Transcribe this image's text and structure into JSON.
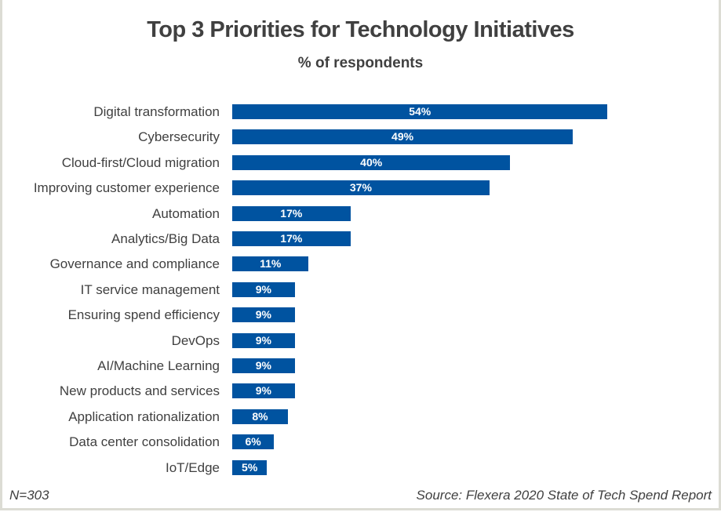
{
  "chart_data": {
    "type": "bar",
    "orientation": "horizontal",
    "title": "Top 3 Priorities for Technology Initiatives",
    "subtitle": "% of respondents",
    "categories": [
      "Digital transformation",
      "Cybersecurity",
      "Cloud-first/Cloud migration",
      "Improving customer experience",
      "Automation",
      "Analytics/Big Data",
      "Governance and compliance",
      "IT service management",
      "Ensuring spend efficiency",
      "DevOps",
      "AI/Machine Learning",
      "New products and services",
      "Application rationalization",
      "Data center consolidation",
      "IoT/Edge"
    ],
    "values": [
      54,
      49,
      40,
      37,
      17,
      17,
      11,
      9,
      9,
      9,
      9,
      9,
      8,
      6,
      5
    ],
    "value_labels": [
      "54%",
      "49%",
      "40%",
      "37%",
      "17%",
      "17%",
      "11%",
      "9%",
      "9%",
      "9%",
      "9%",
      "9%",
      "8%",
      "6%",
      "5%"
    ],
    "bar_color": "#0053a0",
    "grid": false,
    "legend": "none"
  },
  "footer": {
    "n": "N=303",
    "source": "Source: Flexera 2020 State of Tech Spend Report"
  }
}
